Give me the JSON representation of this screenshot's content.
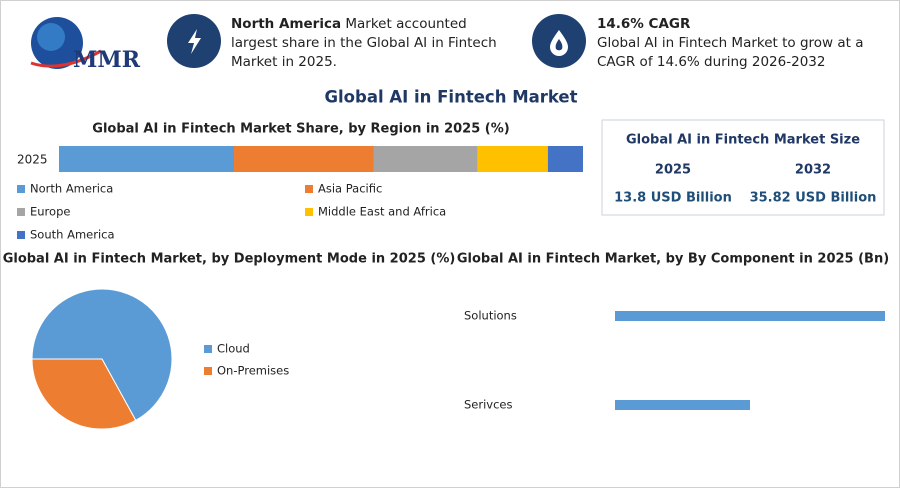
{
  "header": {
    "logo": "MMR",
    "highlights": [
      {
        "bold": "North America",
        "text": "Market accounted largest share in the Global AI in Fintech Market in 2025."
      },
      {
        "bold": "14.6% CAGR",
        "text": "Global AI in Fintech Market to grow at a CAGR of 14.6% during 2026-2032"
      }
    ]
  },
  "title": "Global AI in Fintech Market",
  "market_size": {
    "title": "Global AI in Fintech Market Size",
    "columns": [
      {
        "year": "2025",
        "value": "13.8 USD Billion"
      },
      {
        "year": "2032",
        "value": "35.82 USD Billion"
      }
    ]
  },
  "chart_data": [
    {
      "type": "stacked-bar",
      "title": "Global AI in Fintech Market Share, by Region in 2025 (%)",
      "categories": [
        "2025"
      ],
      "series": [
        {
          "name": "North America",
          "color": "#5b9bd5",
          "values": [
            33.4
          ]
        },
        {
          "name": "Asia Pacific",
          "color": "#ed7d31",
          "values": [
            26.7
          ]
        },
        {
          "name": "Europe",
          "color": "#a5a5a5",
          "values": [
            19.8
          ]
        },
        {
          "name": "Middle East and Africa",
          "color": "#ffc000",
          "values": [
            13.4
          ]
        },
        {
          "name": "South America",
          "color": "#4472c4",
          "values": [
            6.7
          ]
        }
      ]
    },
    {
      "type": "pie",
      "title": "Global AI in Fintech Market, by Deployment Mode in 2025 (%)",
      "categories": [
        "Cloud",
        "On-Premises"
      ],
      "values": [
        67,
        33
      ],
      "colors": [
        "#5b9bd5",
        "#ed7d31"
      ]
    },
    {
      "type": "hbar",
      "title": "Global AI in Fintech Market, by By Component in 2025 (Bn)",
      "categories": [
        "Solutions",
        "Serivces"
      ],
      "values": [
        9.2,
        4.6
      ],
      "color": "#5b9bd5"
    }
  ]
}
